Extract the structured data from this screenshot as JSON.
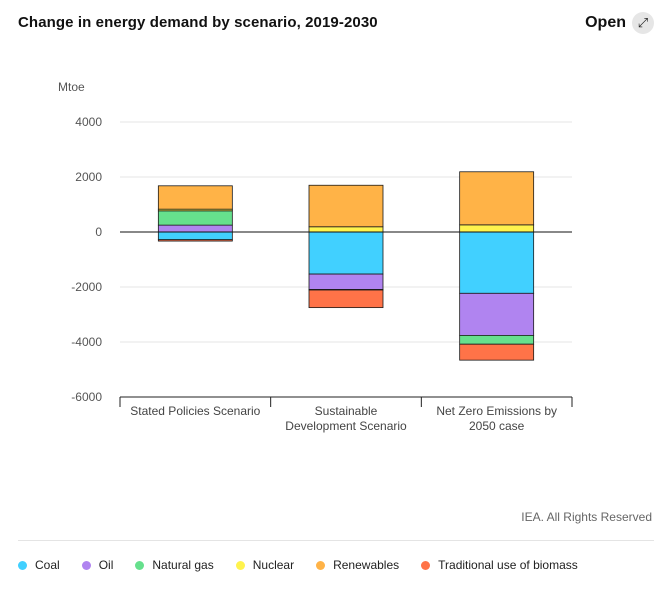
{
  "title": "Change in energy demand by scenario, 2019-2030",
  "open_label": "Open",
  "open_icon": "expand-arrow-icon",
  "credit": "IEA. All Rights Reserved",
  "chart_data": {
    "type": "bar",
    "stacked": true,
    "ylabel": "Mtoe",
    "ylim": [
      -6000,
      4000
    ],
    "yticks": [
      4000,
      2000,
      0,
      -2000,
      -4000,
      -6000
    ],
    "ytick_labels": [
      "4000",
      "2000",
      "0",
      "-2000",
      "-4000",
      "-6000"
    ],
    "grid": true,
    "categories": [
      [
        "Stated Policies Scenario"
      ],
      [
        "Sustainable",
        "Development Scenario"
      ],
      [
        "Net Zero Emissions by",
        "2050 case"
      ]
    ],
    "series": [
      {
        "name": "Coal",
        "color": "#41d0ff",
        "values": [
          -280,
          -1530,
          -2230
        ]
      },
      {
        "name": "Oil",
        "color": "#b084f0",
        "values": [
          250,
          -560,
          -1530
        ]
      },
      {
        "name": "Natural gas",
        "color": "#66e08d",
        "values": [
          520,
          -20,
          -320
        ]
      },
      {
        "name": "Nuclear",
        "color": "#fff34d",
        "values": [
          60,
          190,
          260
        ]
      },
      {
        "name": "Renewables",
        "color": "#ffb347",
        "values": [
          850,
          1510,
          1930
        ]
      },
      {
        "name": "Traditional use of biomass",
        "color": "#ff7348",
        "values": [
          -50,
          -640,
          -580
        ]
      }
    ],
    "legend_position": "bottom"
  }
}
